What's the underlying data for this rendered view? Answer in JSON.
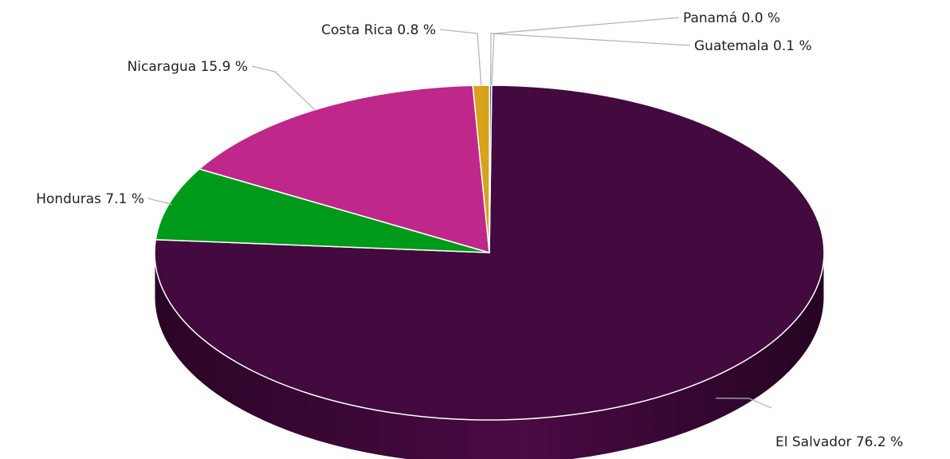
{
  "chart_data": {
    "type": "pie",
    "style": "3d",
    "title": "",
    "labels_outside_with_leaders": true,
    "series": [
      {
        "name": "El Salvador",
        "value": 76.2,
        "label": "El Salvador 76.2 %",
        "color": "#420a3e"
      },
      {
        "name": "Honduras",
        "value": 7.1,
        "label": "Honduras 7.1 %",
        "color": "#009a1a"
      },
      {
        "name": "Nicaragua",
        "value": 15.9,
        "label": "Nicaragua 15.9 %",
        "color": "#c0278a"
      },
      {
        "name": "Costa Rica",
        "value": 0.8,
        "label": "Costa Rica 0.8 %",
        "color": "#d9a21b"
      },
      {
        "name": "Guatemala",
        "value": 0.1,
        "label": "Guatemala 0.1 %",
        "color": "#2b59a3"
      },
      {
        "name": "Panamá",
        "value": 0.0,
        "label": "Panamá 0.0 %",
        "color": "#888888"
      }
    ]
  }
}
